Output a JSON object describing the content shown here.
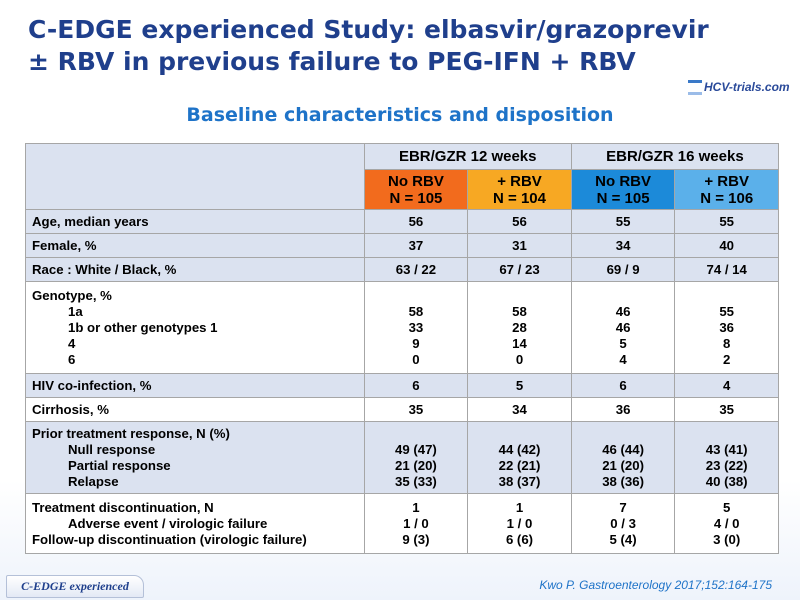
{
  "title_line1": "C-EDGE experienced Study: elbasvir/grazoprevir",
  "title_line2": "± RBV in previous failure to PEG-IFN + RBV",
  "logo_text": "HCV-trials.com",
  "subtitle": "Baseline characteristics and disposition",
  "groups": [
    "EBR/GZR 12 weeks",
    "EBR/GZR 16 weeks"
  ],
  "arms": [
    {
      "line1": "No RBV",
      "line2": "N = 105",
      "color": "#f26b1d"
    },
    {
      "line1": "+ RBV",
      "line2": "N = 104",
      "color": "#f7a823"
    },
    {
      "line1": "No RBV",
      "line2": "N = 105",
      "color": "#1c8ad9"
    },
    {
      "line1": "+ RBV",
      "line2": "N = 106",
      "color": "#5bb0ea"
    }
  ],
  "rows": {
    "age": {
      "label": "Age, median years",
      "values": [
        "56",
        "56",
        "55",
        "55"
      ]
    },
    "female": {
      "label": "Female, %",
      "values": [
        "37",
        "31",
        "34",
        "40"
      ]
    },
    "race": {
      "label": "Race : White / Black, %",
      "values": [
        "63 / 22",
        "67 / 23",
        "69 / 9",
        "74 / 14"
      ]
    },
    "genotype": {
      "label": "Genotype, %",
      "sub": [
        "1a",
        "1b or other genotypes 1",
        "4",
        "6"
      ],
      "values": [
        [
          "58",
          "33",
          "9",
          "0"
        ],
        [
          "58",
          "28",
          "14",
          "0"
        ],
        [
          "46",
          "46",
          "5",
          "4"
        ],
        [
          "55",
          "36",
          "8",
          "2"
        ]
      ]
    },
    "hiv": {
      "label": "HIV co-infection, %",
      "values": [
        "6",
        "5",
        "6",
        "4"
      ]
    },
    "cirrhosis": {
      "label": "Cirrhosis, %",
      "values": [
        "35",
        "34",
        "36",
        "35"
      ]
    },
    "prior": {
      "label": "Prior treatment response, N (%)",
      "sub": [
        "Null response",
        "Partial response",
        "Relapse"
      ],
      "values": [
        [
          "49 (47)",
          "21 (20)",
          "35 (33)"
        ],
        [
          "44 (42)",
          "22 (21)",
          "38 (37)"
        ],
        [
          "46 (44)",
          "21 (20)",
          "38 (36)"
        ],
        [
          "43 (41)",
          "23 (22)",
          "40 (38)"
        ]
      ]
    },
    "disc": {
      "label": "Treatment discontinuation, N",
      "sub": "Adverse event / virologic failure",
      "label2": "Follow-up discontinuation (virologic failure)",
      "values": [
        [
          "1",
          "1 / 0",
          "9 (3)"
        ],
        [
          "1",
          "1 / 0",
          "6 (6)"
        ],
        [
          "7",
          "0 / 3",
          "5 (4)"
        ],
        [
          "5",
          "4 / 0",
          "3 (0)"
        ]
      ]
    }
  },
  "footer_left": "C-EDGE experienced",
  "footer_right": "Kwo P. Gastroenterology 2017;152:164-175",
  "colors": {
    "title": "#1f3f8c",
    "subtitle": "#1e73c8",
    "row_shade": "#dbe2f0",
    "border": "#a6a6a6"
  }
}
